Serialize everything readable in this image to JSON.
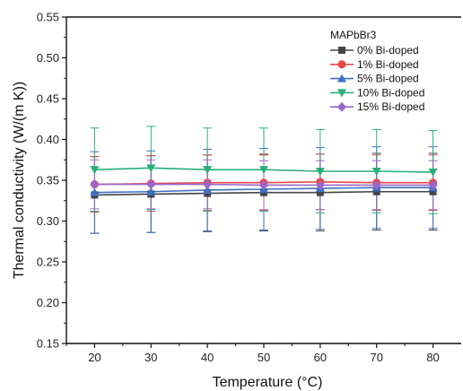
{
  "chart_data": {
    "type": "line",
    "title": "",
    "xlabel": "Temperature (°C)",
    "ylabel": "Thermal conductivity (W/(m K))",
    "x": [
      20,
      30,
      40,
      50,
      60,
      70,
      80
    ],
    "xlim": [
      15,
      85
    ],
    "ylim": [
      0.15,
      0.55
    ],
    "xticks": [
      "20",
      "30",
      "40",
      "50",
      "60",
      "70",
      "80"
    ],
    "yticks": [
      "0.15",
      "0.20",
      "0.25",
      "0.30",
      "0.35",
      "0.40",
      "0.45",
      "0.50",
      "0.55"
    ],
    "grid": false,
    "legend_title": "MAPbBr3",
    "legend_position": "top-right",
    "series": [
      {
        "name": "0% Bi-doped",
        "color": "#444444",
        "marker": "square",
        "values": [
          0.332,
          0.333,
          0.334,
          0.335,
          0.335,
          0.336,
          0.336
        ],
        "errors": [
          0.047,
          0.047,
          0.047,
          0.047,
          0.047,
          0.047,
          0.047
        ]
      },
      {
        "name": "1% Bi-doped",
        "color": "#e8474a",
        "marker": "circle",
        "values": [
          0.345,
          0.346,
          0.347,
          0.347,
          0.348,
          0.347,
          0.347
        ],
        "errors": [
          0.034,
          0.034,
          0.034,
          0.034,
          0.034,
          0.034,
          0.034
        ]
      },
      {
        "name": "5% Bi-doped",
        "color": "#3e6fc4",
        "marker": "triangle-up",
        "values": [
          0.335,
          0.336,
          0.338,
          0.339,
          0.34,
          0.341,
          0.341
        ],
        "errors": [
          0.05,
          0.05,
          0.05,
          0.05,
          0.05,
          0.05,
          0.05
        ]
      },
      {
        "name": "10% Bi-doped",
        "color": "#2aae7a",
        "marker": "triangle-down",
        "values": [
          0.363,
          0.365,
          0.363,
          0.363,
          0.361,
          0.361,
          0.36
        ],
        "errors": [
          0.051,
          0.051,
          0.051,
          0.051,
          0.051,
          0.051,
          0.051
        ]
      },
      {
        "name": "15% Bi-doped",
        "color": "#9a66c8",
        "marker": "diamond",
        "values": [
          0.345,
          0.345,
          0.345,
          0.344,
          0.344,
          0.344,
          0.344
        ],
        "errors": [
          0.03,
          0.03,
          0.03,
          0.03,
          0.03,
          0.03,
          0.03
        ]
      }
    ]
  }
}
